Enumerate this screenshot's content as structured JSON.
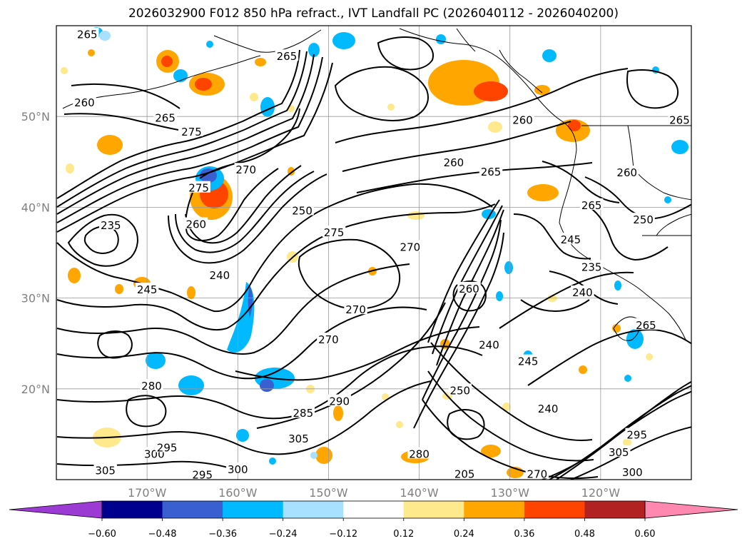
{
  "title": "2026032900 F012 850 hPa refract., IVT Landfall PC (2026040112 - 2026040200)",
  "map": {
    "lon_range": [
      -180,
      -110
    ],
    "lat_range": [
      10,
      60
    ],
    "lat_ticks": [
      {
        "value": 20,
        "label": "20°N"
      },
      {
        "value": 30,
        "label": "30°N"
      },
      {
        "value": 40,
        "label": "40°N"
      },
      {
        "value": 50,
        "label": "50°N"
      }
    ],
    "lon_ticks": [
      {
        "value": -170,
        "label": "170°W"
      },
      {
        "value": -160,
        "label": "160°W"
      },
      {
        "value": -150,
        "label": "150°W"
      },
      {
        "value": -140,
        "label": "140°W"
      },
      {
        "value": -130,
        "label": "130°W"
      },
      {
        "value": -120,
        "label": "120°W"
      }
    ],
    "grid": true,
    "contour_labels": [
      {
        "text": "265",
        "lon": -176.6,
        "lat": 59.0
      },
      {
        "text": "260",
        "lon": -176.9,
        "lat": 51.5
      },
      {
        "text": "265",
        "lon": -168.0,
        "lat": 49.8
      },
      {
        "text": "275",
        "lon": -165.1,
        "lat": 48.3
      },
      {
        "text": "265",
        "lon": -154.6,
        "lat": 56.6
      },
      {
        "text": "270",
        "lon": -159.1,
        "lat": 44.1
      },
      {
        "text": "275",
        "lon": -164.3,
        "lat": 42.1
      },
      {
        "text": "260",
        "lon": -164.6,
        "lat": 38.1
      },
      {
        "text": "235",
        "lon": -174.0,
        "lat": 38.0
      },
      {
        "text": "250",
        "lon": -152.9,
        "lat": 39.6
      },
      {
        "text": "275",
        "lon": -149.4,
        "lat": 37.2
      },
      {
        "text": "270",
        "lon": -141.0,
        "lat": 35.6
      },
      {
        "text": "240",
        "lon": -162.0,
        "lat": 32.5
      },
      {
        "text": "245",
        "lon": -170.0,
        "lat": 30.9
      },
      {
        "text": "270",
        "lon": -147.0,
        "lat": 28.7
      },
      {
        "text": "270",
        "lon": -150.0,
        "lat": 25.4
      },
      {
        "text": "280",
        "lon": -169.5,
        "lat": 20.3
      },
      {
        "text": "285",
        "lon": -152.8,
        "lat": 17.3
      },
      {
        "text": "290",
        "lon": -148.8,
        "lat": 18.6
      },
      {
        "text": "305",
        "lon": -153.3,
        "lat": 14.5
      },
      {
        "text": "300",
        "lon": -169.2,
        "lat": 12.8
      },
      {
        "text": "295",
        "lon": -167.8,
        "lat": 13.5
      },
      {
        "text": "295",
        "lon": -163.9,
        "lat": 10.5
      },
      {
        "text": "300",
        "lon": -160.0,
        "lat": 11.1
      },
      {
        "text": "305",
        "lon": -174.6,
        "lat": 11.0
      },
      {
        "text": "260",
        "lon": -136.2,
        "lat": 44.9
      },
      {
        "text": "265",
        "lon": -132.1,
        "lat": 43.9
      },
      {
        "text": "260",
        "lon": -128.6,
        "lat": 49.6
      },
      {
        "text": "265",
        "lon": -111.3,
        "lat": 49.6
      },
      {
        "text": "260",
        "lon": -117.1,
        "lat": 43.8
      },
      {
        "text": "265",
        "lon": -121.0,
        "lat": 40.2
      },
      {
        "text": "250",
        "lon": -115.3,
        "lat": 38.6
      },
      {
        "text": "245",
        "lon": -123.3,
        "lat": 36.4
      },
      {
        "text": "235",
        "lon": -121.0,
        "lat": 33.4
      },
      {
        "text": "240",
        "lon": -122.0,
        "lat": 30.6
      },
      {
        "text": "260",
        "lon": -134.5,
        "lat": 31.0
      },
      {
        "text": "240",
        "lon": -132.3,
        "lat": 24.8
      },
      {
        "text": "245",
        "lon": -128.0,
        "lat": 23.0
      },
      {
        "text": "250",
        "lon": -135.5,
        "lat": 19.8
      },
      {
        "text": "240",
        "lon": -125.8,
        "lat": 17.8
      },
      {
        "text": "280",
        "lon": -140.0,
        "lat": 12.8
      },
      {
        "text": "205",
        "lon": -135.0,
        "lat": 10.6
      },
      {
        "text": "270",
        "lon": -127.0,
        "lat": 10.6
      },
      {
        "text": "295",
        "lon": -116.0,
        "lat": 14.9
      },
      {
        "text": "305",
        "lon": -118.0,
        "lat": 13.0
      },
      {
        "text": "300",
        "lon": -116.5,
        "lat": 10.8
      },
      {
        "text": "265",
        "lon": -115.0,
        "lat": 27.0
      }
    ]
  },
  "colorbar": {
    "ticks": [
      "−0.60",
      "−0.48",
      "−0.36",
      "−0.24",
      "−0.12",
      "0.12",
      "0.24",
      "0.36",
      "0.48",
      "0.60"
    ],
    "colors": [
      "#9c3ad4",
      "#00008e",
      "#3a5fd1",
      "#00b9ff",
      "#a8e0ff",
      "#ffffff",
      "#ffe98d",
      "#ffa600",
      "#ff4400",
      "#b22222",
      "#ff88b0"
    ]
  }
}
